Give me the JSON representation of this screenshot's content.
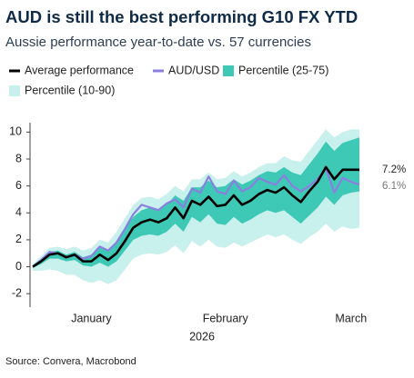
{
  "chart_data": {
    "type": "line",
    "title": "AUD is still the best performing G10 FX YTD",
    "subtitle": "Aussie performance year-to-date vs. 57 currencies",
    "xlabel": "2026",
    "source": "Source: Convera, Macrobond",
    "categories": [
      null,
      null,
      null,
      null,
      null,
      null,
      null,
      "January",
      null,
      null,
      null,
      null,
      null,
      null,
      null,
      null,
      null,
      null,
      null,
      null,
      null,
      null,
      null,
      "February",
      null,
      null,
      null,
      null,
      null,
      null,
      null,
      null,
      null,
      null,
      null,
      null,
      null,
      null,
      "March",
      null
    ],
    "ylim": [
      -3,
      10.7
    ],
    "yticks": [
      -2,
      0,
      2,
      4,
      6,
      8,
      10
    ],
    "series": [
      {
        "name": "Average performance",
        "color": "#000000",
        "values": [
          0,
          0.4,
          0.9,
          1.0,
          0.7,
          0.9,
          0.4,
          0.4,
          0.9,
          0.5,
          1.0,
          1.9,
          2.9,
          3.3,
          3.5,
          3.3,
          3.6,
          4.4,
          3.6,
          4.9,
          4.6,
          5.2,
          4.5,
          4.6,
          5.3,
          4.6,
          4.9,
          5.4,
          5.7,
          5.5,
          5.9,
          5.3,
          4.8,
          5.6,
          6.3,
          7.4,
          6.5,
          7.2,
          7.2,
          7.2
        ],
        "value_labels": [
          null,
          null,
          null,
          null,
          null,
          null,
          null,
          null,
          null,
          null,
          null,
          null,
          null,
          null,
          null,
          null,
          null,
          null,
          null,
          null,
          null,
          null,
          null,
          null,
          null,
          null,
          null,
          null,
          null,
          null,
          null,
          null,
          null,
          null,
          null,
          null,
          null,
          null,
          null,
          "7.2%"
        ]
      },
      {
        "name": "AUD/USD",
        "color": "#8b7fe0",
        "values": [
          0,
          0.5,
          1.1,
          1.0,
          0.7,
          0.9,
          0.6,
          0.8,
          1.5,
          1.2,
          1.8,
          2.8,
          3.9,
          4.6,
          4.4,
          4.2,
          4.7,
          5.0,
          4.4,
          5.8,
          5.5,
          6.7,
          5.6,
          5.4,
          6.4,
          5.6,
          5.9,
          6.6,
          6.3,
          6.1,
          6.8,
          6.0,
          5.6,
          6.0,
          6.5,
          7.3,
          5.5,
          6.6,
          6.3,
          6.1
        ],
        "value_labels": [
          null,
          null,
          null,
          null,
          null,
          null,
          null,
          null,
          null,
          null,
          null,
          null,
          null,
          null,
          null,
          null,
          null,
          null,
          null,
          null,
          null,
          null,
          null,
          null,
          null,
          null,
          null,
          null,
          null,
          null,
          null,
          null,
          null,
          null,
          null,
          null,
          null,
          null,
          null,
          "6.1%"
        ]
      },
      {
        "name": "Percentile (25-75)",
        "color": "#3ec9b6",
        "upper": [
          0.1,
          0.6,
          1.1,
          1.2,
          0.9,
          1.1,
          0.7,
          0.9,
          1.4,
          1.2,
          1.8,
          2.8,
          3.7,
          4.2,
          4.4,
          4.3,
          4.6,
          5.3,
          4.9,
          5.9,
          5.9,
          6.4,
          5.9,
          6.0,
          6.5,
          6.1,
          6.4,
          6.8,
          7.1,
          7.0,
          7.4,
          7.0,
          6.8,
          7.6,
          8.4,
          9.3,
          8.6,
          9.2,
          9.4,
          9.6
        ],
        "lower": [
          -0.1,
          0.2,
          0.6,
          0.6,
          0.4,
          0.5,
          0.1,
          0.0,
          0.3,
          0.0,
          0.4,
          1.2,
          2.0,
          2.3,
          2.4,
          2.3,
          2.6,
          3.2,
          2.6,
          3.7,
          3.3,
          3.9,
          3.2,
          3.1,
          3.7,
          3.2,
          3.5,
          3.9,
          4.2,
          4.0,
          4.2,
          3.7,
          3.2,
          3.8,
          4.4,
          5.2,
          4.6,
          5.3,
          5.5,
          5.6
        ]
      },
      {
        "name": "Percentile (10-90)",
        "color": "#c8f0ec",
        "upper": [
          0.2,
          0.8,
          1.4,
          1.5,
          1.3,
          1.5,
          1.2,
          1.4,
          2.0,
          1.8,
          2.6,
          3.6,
          4.6,
          5.1,
          5.2,
          5.0,
          5.4,
          6.0,
          5.6,
          6.5,
          6.5,
          7.0,
          6.5,
          6.6,
          7.1,
          6.7,
          7.0,
          7.4,
          7.7,
          7.7,
          8.2,
          7.9,
          7.8,
          8.6,
          9.4,
          10.2,
          9.6,
          10.0,
          10.2,
          10.2
        ],
        "lower": [
          -0.3,
          -0.3,
          -0.2,
          -0.3,
          -0.6,
          -0.6,
          -1.0,
          -1.2,
          -1.0,
          -1.3,
          -1.0,
          -0.2,
          0.6,
          0.9,
          1.0,
          0.9,
          1.1,
          1.6,
          1.0,
          1.9,
          1.5,
          2.0,
          1.5,
          1.4,
          1.8,
          1.5,
          1.8,
          2.1,
          2.4,
          2.2,
          2.4,
          2.0,
          1.7,
          2.2,
          2.6,
          3.2,
          2.6,
          3.0,
          2.8,
          2.9
        ]
      }
    ]
  }
}
